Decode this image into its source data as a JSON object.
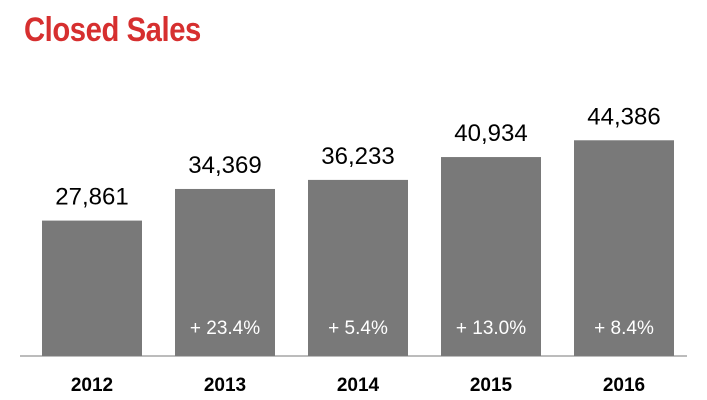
{
  "title": "Closed Sales",
  "colors": {
    "title": "#d62f2f",
    "bar": "#797979",
    "axis": "#7a7a7a",
    "change_text": "#ffffff",
    "value_text": "#000000"
  },
  "chart_data": {
    "type": "bar",
    "title": "Closed Sales",
    "categories": [
      "2012",
      "2013",
      "2014",
      "2015",
      "2016"
    ],
    "values": [
      27861,
      34369,
      36233,
      40934,
      44386
    ],
    "value_labels": [
      "27,861",
      "34,369",
      "36,233",
      "40,934",
      "44,386"
    ],
    "change_labels": [
      "",
      "+ 23.4%",
      "+ 5.4%",
      "+ 13.0%",
      "+ 8.4%"
    ],
    "xlabel": "",
    "ylabel": "",
    "grid": false,
    "legend": "none"
  }
}
